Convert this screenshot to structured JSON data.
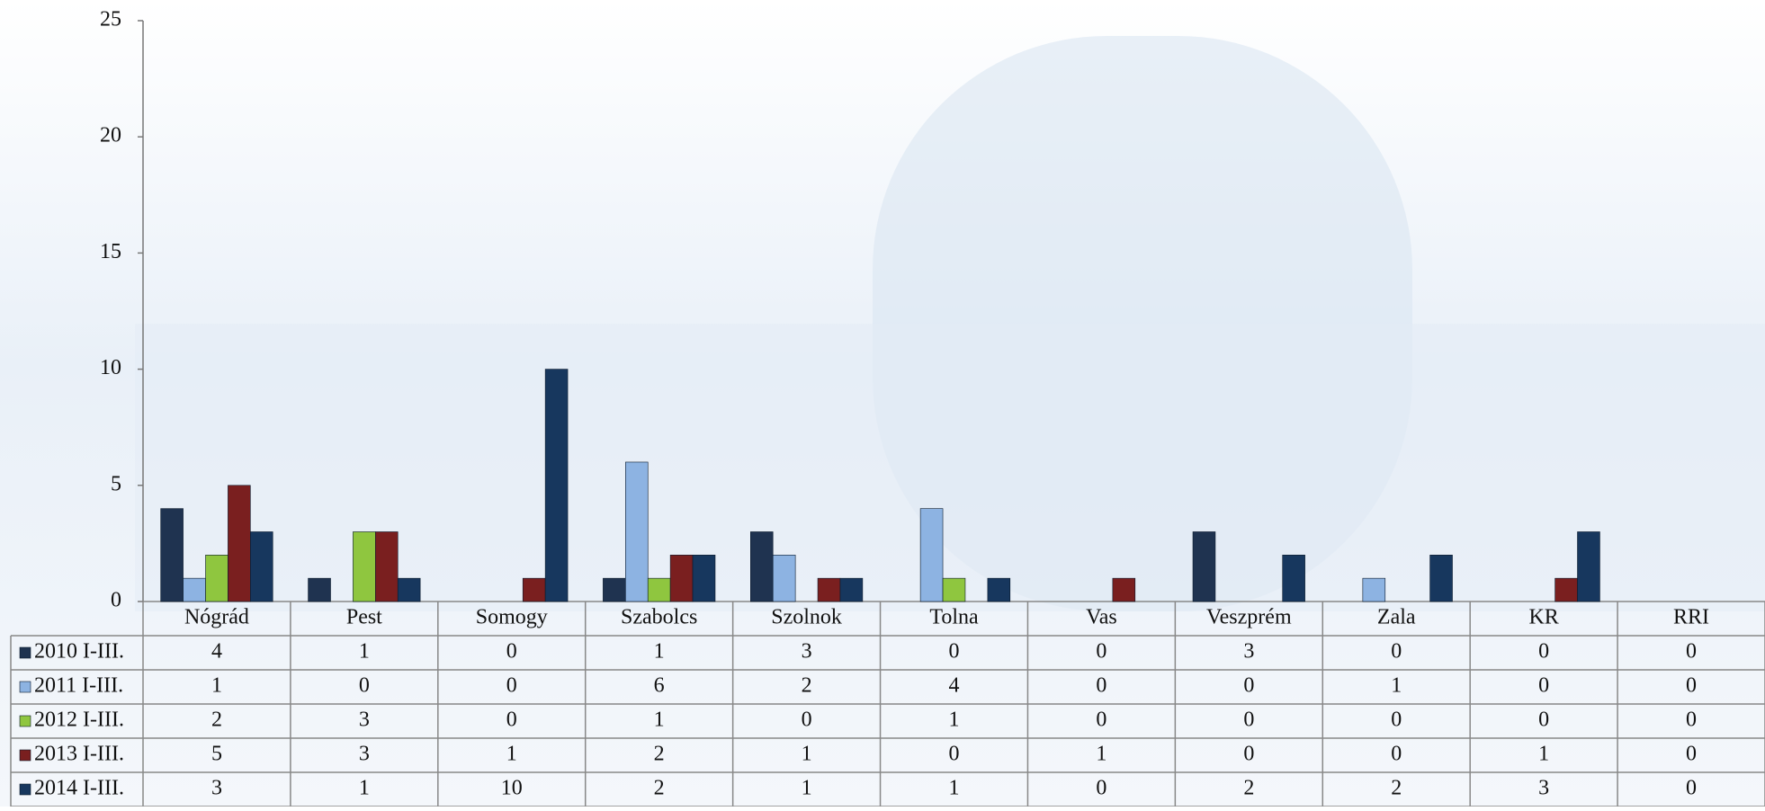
{
  "chart_data": {
    "type": "bar",
    "categories": [
      "Nógrád",
      "Pest",
      "Somogy",
      "Szabolcs",
      "Szolnok",
      "Tolna",
      "Vas",
      "Veszprém",
      "Zala",
      "KR",
      "RRI"
    ],
    "series": [
      {
        "name": "2010 I-III.",
        "color": "#1f3350",
        "values": [
          4,
          1,
          0,
          1,
          3,
          0,
          0,
          3,
          0,
          0,
          0
        ]
      },
      {
        "name": "2011 I-III.",
        "color": "#8db3e2",
        "values": [
          1,
          0,
          0,
          6,
          2,
          4,
          0,
          0,
          1,
          0,
          0
        ]
      },
      {
        "name": "2012 I-III.",
        "color": "#8fc63f",
        "values": [
          2,
          3,
          0,
          1,
          0,
          1,
          0,
          0,
          0,
          0,
          0
        ]
      },
      {
        "name": "2013 I-III.",
        "color": "#7a1f1f",
        "values": [
          5,
          3,
          1,
          2,
          1,
          0,
          1,
          0,
          0,
          1,
          0
        ]
      },
      {
        "name": "2014 I-III.",
        "color": "#17375e",
        "values": [
          3,
          1,
          10,
          2,
          1,
          1,
          0,
          2,
          2,
          3,
          0
        ]
      }
    ],
    "ylim": [
      0,
      25
    ],
    "yticks": [
      0,
      5,
      10,
      15,
      20,
      25
    ],
    "grid": false
  }
}
